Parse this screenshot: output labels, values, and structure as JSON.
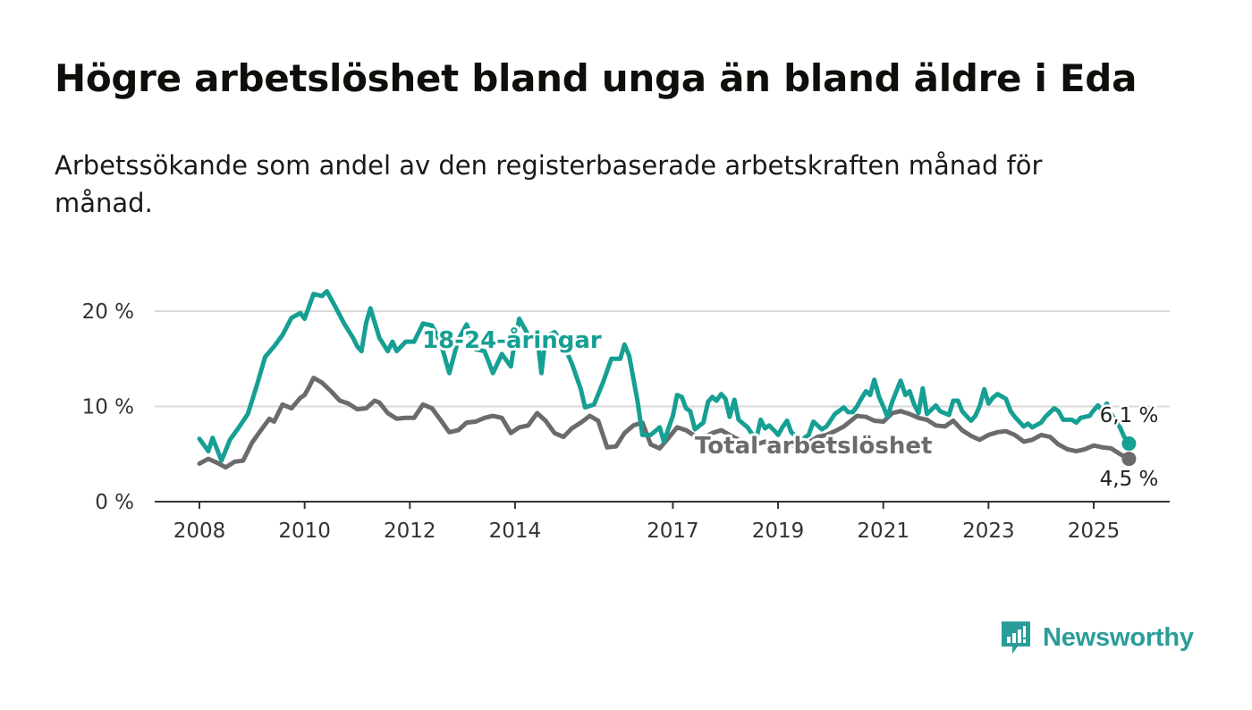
{
  "title": "Högre arbetslöshet bland unga än bland äldre i Eda",
  "subtitle": "Arbetssökande som andel av den registerbaserade arbetskraften månad för månad.",
  "brand": {
    "name": "Newsworthy",
    "icon": "newsworthy-logo-icon",
    "color": "#2a9d98"
  },
  "chart_data": {
    "type": "line",
    "title": "Högre arbetslöshet bland unga än bland äldre i Eda",
    "subtitle": "Arbetssökande som andel av den registerbaserade arbetskraften månad för månad.",
    "xlabel": "",
    "ylabel": "",
    "ylim": [
      0,
      20
    ],
    "xlim": [
      2007.6,
      2026.7
    ],
    "yticks": [
      0,
      10,
      20
    ],
    "ytick_labels": [
      "0 %",
      "10 %",
      "20 %"
    ],
    "xticks": [
      2008,
      2010,
      2012,
      2014,
      2017,
      2019,
      2021,
      2023,
      2025
    ],
    "xtick_labels": [
      "2008",
      "2010",
      "2012",
      "2014",
      "2017",
      "2019",
      "2021",
      "2023",
      "2025"
    ],
    "grid": true,
    "legend": "inline labels",
    "series": [
      {
        "name": "18-24-åringar",
        "color": "#169f93",
        "end_label": "6,1 %",
        "points": [
          [
            2008.0,
            6.6
          ],
          [
            2008.17,
            5.3
          ],
          [
            2008.25,
            6.7
          ],
          [
            2008.42,
            4.3
          ],
          [
            2008.58,
            6.5
          ],
          [
            2008.75,
            7.8
          ],
          [
            2008.92,
            9.2
          ],
          [
            2009.08,
            12.0
          ],
          [
            2009.25,
            15.2
          ],
          [
            2009.42,
            16.3
          ],
          [
            2009.58,
            17.5
          ],
          [
            2009.75,
            19.3
          ],
          [
            2009.92,
            19.8
          ],
          [
            2010.0,
            19.2
          ],
          [
            2010.17,
            21.8
          ],
          [
            2010.33,
            21.6
          ],
          [
            2010.42,
            22.1
          ],
          [
            2010.58,
            20.5
          ],
          [
            2010.75,
            18.7
          ],
          [
            2010.92,
            17.2
          ],
          [
            2011.0,
            16.3
          ],
          [
            2011.08,
            15.8
          ],
          [
            2011.17,
            18.8
          ],
          [
            2011.25,
            20.3
          ],
          [
            2011.42,
            17.2
          ],
          [
            2011.58,
            15.8
          ],
          [
            2011.67,
            16.8
          ],
          [
            2011.75,
            15.8
          ],
          [
            2011.92,
            16.8
          ],
          [
            2012.08,
            16.8
          ],
          [
            2012.25,
            18.7
          ],
          [
            2012.42,
            18.5
          ],
          [
            2012.58,
            16.8
          ],
          [
            2012.75,
            13.5
          ],
          [
            2012.92,
            17.0
          ],
          [
            2013.08,
            18.6
          ],
          [
            2013.25,
            16.0
          ],
          [
            2013.42,
            15.8
          ],
          [
            2013.58,
            13.5
          ],
          [
            2013.75,
            15.5
          ],
          [
            2013.92,
            14.2
          ],
          [
            2014.0,
            17.0
          ],
          [
            2014.08,
            19.2
          ],
          [
            2014.25,
            17.5
          ],
          [
            2014.42,
            17.5
          ],
          [
            2014.5,
            13.5
          ],
          [
            2014.58,
            17.3
          ],
          [
            2014.75,
            17.8
          ],
          [
            2014.92,
            16.5
          ],
          [
            2015.08,
            14.5
          ],
          [
            2015.25,
            11.8
          ],
          [
            2015.33,
            9.9
          ],
          [
            2015.5,
            10.2
          ],
          [
            2015.67,
            12.5
          ],
          [
            2015.83,
            15.0
          ],
          [
            2016.0,
            15.0
          ],
          [
            2016.08,
            16.5
          ],
          [
            2016.17,
            15.3
          ],
          [
            2016.33,
            10.5
          ],
          [
            2016.42,
            7.0
          ],
          [
            2016.58,
            7.0
          ],
          [
            2016.75,
            7.8
          ],
          [
            2016.83,
            6.3
          ],
          [
            2017.0,
            9.0
          ],
          [
            2017.08,
            11.2
          ],
          [
            2017.17,
            11.0
          ],
          [
            2017.25,
            9.8
          ],
          [
            2017.33,
            9.5
          ],
          [
            2017.42,
            7.6
          ],
          [
            2017.58,
            8.3
          ],
          [
            2017.67,
            10.5
          ],
          [
            2017.75,
            11.0
          ],
          [
            2017.83,
            10.6
          ],
          [
            2017.92,
            11.3
          ],
          [
            2018.0,
            10.8
          ],
          [
            2018.08,
            8.9
          ],
          [
            2018.17,
            10.7
          ],
          [
            2018.25,
            8.6
          ],
          [
            2018.42,
            7.8
          ],
          [
            2018.58,
            6.5
          ],
          [
            2018.67,
            8.6
          ],
          [
            2018.75,
            7.7
          ],
          [
            2018.83,
            8.0
          ],
          [
            2018.92,
            7.5
          ],
          [
            2019.0,
            7.0
          ],
          [
            2019.08,
            7.8
          ],
          [
            2019.17,
            8.5
          ],
          [
            2019.25,
            7.3
          ],
          [
            2019.42,
            6.4
          ],
          [
            2019.58,
            7.0
          ],
          [
            2019.67,
            8.4
          ],
          [
            2019.75,
            8.0
          ],
          [
            2019.83,
            7.6
          ],
          [
            2019.92,
            7.9
          ],
          [
            2020.08,
            9.2
          ],
          [
            2020.25,
            9.9
          ],
          [
            2020.33,
            9.4
          ],
          [
            2020.42,
            9.4
          ],
          [
            2020.5,
            10.0
          ],
          [
            2020.58,
            10.8
          ],
          [
            2020.67,
            11.6
          ],
          [
            2020.75,
            11.2
          ],
          [
            2020.83,
            12.8
          ],
          [
            2020.92,
            11.0
          ],
          [
            2021.0,
            10.0
          ],
          [
            2021.08,
            8.9
          ],
          [
            2021.17,
            10.5
          ],
          [
            2021.33,
            12.7
          ],
          [
            2021.42,
            11.2
          ],
          [
            2021.5,
            11.6
          ],
          [
            2021.58,
            10.3
          ],
          [
            2021.67,
            9.3
          ],
          [
            2021.75,
            11.9
          ],
          [
            2021.83,
            9.2
          ],
          [
            2022.0,
            10.1
          ],
          [
            2022.08,
            9.5
          ],
          [
            2022.25,
            9.1
          ],
          [
            2022.33,
            10.6
          ],
          [
            2022.42,
            10.6
          ],
          [
            2022.5,
            9.5
          ],
          [
            2022.58,
            9.0
          ],
          [
            2022.67,
            8.5
          ],
          [
            2022.75,
            9.0
          ],
          [
            2022.83,
            10.0
          ],
          [
            2022.92,
            11.8
          ],
          [
            2023.0,
            10.3
          ],
          [
            2023.08,
            10.9
          ],
          [
            2023.17,
            11.3
          ],
          [
            2023.33,
            10.8
          ],
          [
            2023.42,
            9.5
          ],
          [
            2023.5,
            8.9
          ],
          [
            2023.67,
            7.9
          ],
          [
            2023.75,
            8.2
          ],
          [
            2023.83,
            7.8
          ],
          [
            2024.0,
            8.3
          ],
          [
            2024.08,
            8.9
          ],
          [
            2024.25,
            9.8
          ],
          [
            2024.33,
            9.5
          ],
          [
            2024.42,
            8.6
          ],
          [
            2024.58,
            8.6
          ],
          [
            2024.67,
            8.3
          ],
          [
            2024.75,
            8.8
          ],
          [
            2024.92,
            9.0
          ],
          [
            2025.0,
            9.6
          ],
          [
            2025.08,
            10.1
          ],
          [
            2025.17,
            9.5
          ],
          [
            2025.25,
            10.3
          ],
          [
            2025.33,
            9.2
          ],
          [
            2025.42,
            8.5
          ],
          [
            2025.5,
            7.8
          ],
          [
            2025.58,
            6.8
          ],
          [
            2025.67,
            6.1
          ]
        ]
      },
      {
        "name": "Total arbetslöshet",
        "color": "#6b6a6d",
        "end_label": "4,5 %",
        "points": [
          [
            2008.0,
            4.0
          ],
          [
            2008.17,
            4.5
          ],
          [
            2008.33,
            4.1
          ],
          [
            2008.5,
            3.6
          ],
          [
            2008.67,
            4.2
          ],
          [
            2008.83,
            4.3
          ],
          [
            2009.0,
            6.2
          ],
          [
            2009.17,
            7.5
          ],
          [
            2009.33,
            8.7
          ],
          [
            2009.42,
            8.4
          ],
          [
            2009.58,
            10.2
          ],
          [
            2009.75,
            9.8
          ],
          [
            2009.92,
            10.9
          ],
          [
            2010.0,
            11.2
          ],
          [
            2010.08,
            12.0
          ],
          [
            2010.17,
            13.0
          ],
          [
            2010.33,
            12.5
          ],
          [
            2010.5,
            11.6
          ],
          [
            2010.67,
            10.6
          ],
          [
            2010.83,
            10.3
          ],
          [
            2011.0,
            9.7
          ],
          [
            2011.17,
            9.8
          ],
          [
            2011.33,
            10.6
          ],
          [
            2011.42,
            10.4
          ],
          [
            2011.58,
            9.3
          ],
          [
            2011.75,
            8.7
          ],
          [
            2011.92,
            8.8
          ],
          [
            2012.08,
            8.8
          ],
          [
            2012.25,
            10.2
          ],
          [
            2012.42,
            9.8
          ],
          [
            2012.58,
            8.6
          ],
          [
            2012.75,
            7.3
          ],
          [
            2012.92,
            7.5
          ],
          [
            2013.08,
            8.3
          ],
          [
            2013.25,
            8.4
          ],
          [
            2013.42,
            8.8
          ],
          [
            2013.58,
            9.0
          ],
          [
            2013.75,
            8.8
          ],
          [
            2013.92,
            7.2
          ],
          [
            2014.08,
            7.8
          ],
          [
            2014.25,
            8.0
          ],
          [
            2014.42,
            9.3
          ],
          [
            2014.58,
            8.5
          ],
          [
            2014.75,
            7.2
          ],
          [
            2014.92,
            6.8
          ],
          [
            2015.08,
            7.7
          ],
          [
            2015.25,
            8.3
          ],
          [
            2015.42,
            9.0
          ],
          [
            2015.58,
            8.5
          ],
          [
            2015.75,
            5.7
          ],
          [
            2015.92,
            5.8
          ],
          [
            2016.08,
            7.2
          ],
          [
            2016.25,
            8.0
          ],
          [
            2016.42,
            8.3
          ],
          [
            2016.58,
            6.0
          ],
          [
            2016.75,
            5.6
          ],
          [
            2016.92,
            6.7
          ],
          [
            2017.08,
            7.8
          ],
          [
            2017.25,
            7.5
          ],
          [
            2017.42,
            6.9
          ],
          [
            2017.58,
            6.7
          ],
          [
            2017.75,
            7.2
          ],
          [
            2017.92,
            7.5
          ],
          [
            2018.08,
            7.0
          ],
          [
            2018.25,
            6.5
          ],
          [
            2018.42,
            6.2
          ],
          [
            2018.58,
            6.0
          ],
          [
            2018.75,
            6.3
          ],
          [
            2018.92,
            5.9
          ],
          [
            2019.08,
            6.1
          ],
          [
            2019.25,
            6.0
          ],
          [
            2019.42,
            5.6
          ],
          [
            2019.58,
            6.2
          ],
          [
            2019.75,
            6.8
          ],
          [
            2019.92,
            7.0
          ],
          [
            2020.08,
            7.4
          ],
          [
            2020.25,
            7.9
          ],
          [
            2020.5,
            9.0
          ],
          [
            2020.67,
            8.9
          ],
          [
            2020.83,
            8.5
          ],
          [
            2021.0,
            8.4
          ],
          [
            2021.17,
            9.3
          ],
          [
            2021.33,
            9.5
          ],
          [
            2021.5,
            9.2
          ],
          [
            2021.67,
            8.8
          ],
          [
            2021.83,
            8.6
          ],
          [
            2022.0,
            8.0
          ],
          [
            2022.17,
            7.9
          ],
          [
            2022.33,
            8.5
          ],
          [
            2022.5,
            7.5
          ],
          [
            2022.67,
            6.9
          ],
          [
            2022.83,
            6.5
          ],
          [
            2023.0,
            7.0
          ],
          [
            2023.17,
            7.3
          ],
          [
            2023.33,
            7.4
          ],
          [
            2023.5,
            7.0
          ],
          [
            2023.67,
            6.3
          ],
          [
            2023.83,
            6.5
          ],
          [
            2024.0,
            7.0
          ],
          [
            2024.17,
            6.8
          ],
          [
            2024.33,
            6.0
          ],
          [
            2024.5,
            5.5
          ],
          [
            2024.67,
            5.3
          ],
          [
            2024.83,
            5.5
          ],
          [
            2025.0,
            5.9
          ],
          [
            2025.17,
            5.7
          ],
          [
            2025.33,
            5.6
          ],
          [
            2025.5,
            5.0
          ],
          [
            2025.67,
            4.5
          ]
        ]
      }
    ]
  }
}
